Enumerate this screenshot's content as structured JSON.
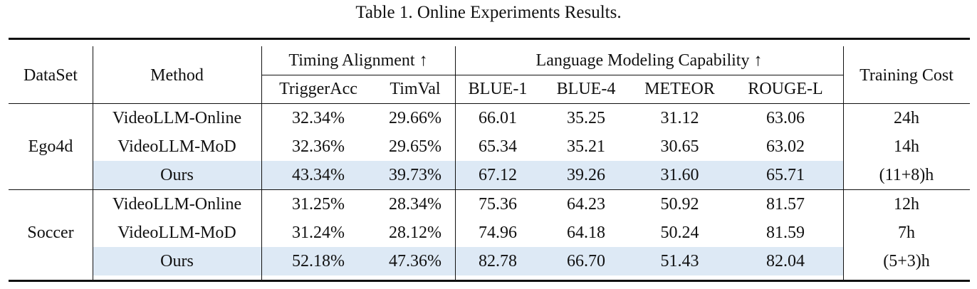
{
  "caption": "Table 1. Online Experiments Results.",
  "headers": {
    "dataset": "DataSet",
    "method": "Method",
    "timing_group": "Timing Alignment ↑",
    "language_group": "Language Modeling Capability ↑",
    "training_cost": "Training Cost",
    "trigger_acc": "TriggerAcc",
    "timval": "TimVal",
    "blue1": "BLUE-1",
    "blue4": "BLUE-4",
    "meteor": "METEOR",
    "rouge_l": "ROUGE-L"
  },
  "groups": [
    {
      "dataset": "Ego4d",
      "rows": [
        {
          "method": "VideoLLM-Online",
          "trigger_acc": "32.34%",
          "timval": "29.66%",
          "blue1": "66.01",
          "blue4": "35.25",
          "meteor": "31.12",
          "rouge_l": "63.06",
          "cost": "24h",
          "highlight": false
        },
        {
          "method": "VideoLLM-MoD",
          "trigger_acc": "32.36%",
          "timval": "29.65%",
          "blue1": "65.34",
          "blue4": "35.21",
          "meteor": "30.65",
          "rouge_l": "63.02",
          "cost": "14h",
          "highlight": false
        },
        {
          "method": "Ours",
          "trigger_acc": "43.34%",
          "timval": "39.73%",
          "blue1": "67.12",
          "blue4": "39.26",
          "meteor": "31.60",
          "rouge_l": "65.71",
          "cost": "(11+8)h",
          "highlight": true
        }
      ]
    },
    {
      "dataset": "Soccer",
      "rows": [
        {
          "method": "VideoLLM-Online",
          "trigger_acc": "31.25%",
          "timval": "28.34%",
          "blue1": "75.36",
          "blue4": "64.23",
          "meteor": "50.92",
          "rouge_l": "81.57",
          "cost": "12h",
          "highlight": false
        },
        {
          "method": "VideoLLM-MoD",
          "trigger_acc": "31.24%",
          "timval": "28.12%",
          "blue1": "74.96",
          "blue4": "64.18",
          "meteor": "50.24",
          "rouge_l": "81.59",
          "cost": "7h",
          "highlight": false
        },
        {
          "method": "Ours",
          "trigger_acc": "52.18%",
          "timval": "47.36%",
          "blue1": "82.78",
          "blue4": "66.70",
          "meteor": "51.43",
          "rouge_l": "82.04",
          "cost": "(5+3)h",
          "highlight": true
        }
      ]
    }
  ],
  "colors": {
    "highlight": "#dde9f5",
    "rule": "#111111"
  }
}
